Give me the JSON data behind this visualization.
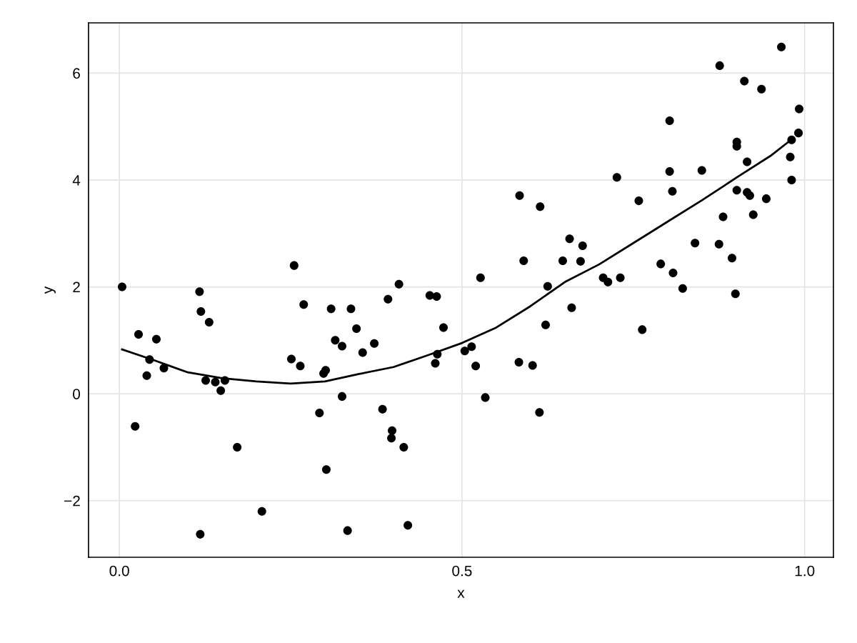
{
  "chart_data": {
    "type": "scatter",
    "xlabel": "x",
    "ylabel": "y",
    "xlim": [
      -0.045,
      1.042
    ],
    "ylim": [
      -3.06,
      6.94
    ],
    "xticks": [
      {
        "value": 0,
        "label": "0.0"
      },
      0.5,
      {
        "value": 1,
        "label": "1.0"
      }
    ],
    "yticks": [
      {
        "value": -2,
        "label": "−2"
      },
      0,
      2,
      4,
      6
    ],
    "grid": true,
    "legend": false,
    "series": [
      {
        "color": "#000000",
        "marker": "circle",
        "x": [
          0.004,
          0.028,
          0.023,
          0.054,
          0.044,
          0.04,
          0.065,
          0.117,
          0.119,
          0.131,
          0.118,
          0.126,
          0.14,
          0.154,
          0.148,
          0.172,
          0.208,
          0.255,
          0.269,
          0.251,
          0.264,
          0.301,
          0.298,
          0.292,
          0.302,
          0.309,
          0.315,
          0.338,
          0.325,
          0.346,
          0.355,
          0.372,
          0.392,
          0.408,
          0.325,
          0.384,
          0.398,
          0.397,
          0.415,
          0.333,
          0.421,
          0.453,
          0.463,
          0.473,
          0.464,
          0.461,
          0.504,
          0.514,
          0.52,
          0.527,
          0.534,
          0.584,
          0.614,
          0.59,
          0.583,
          0.603,
          0.613,
          0.625,
          0.622,
          0.66,
          0.647,
          0.657,
          0.673,
          0.676,
          0.726,
          0.706,
          0.713,
          0.731,
          0.758,
          0.763,
          0.803,
          0.803,
          0.807,
          0.79,
          0.808,
          0.822,
          0.84,
          0.85,
          0.876,
          0.875,
          0.881,
          0.894,
          0.899,
          0.901,
          0.901,
          0.901,
          0.916,
          0.916,
          0.92,
          0.912,
          0.937,
          0.925,
          0.944,
          0.966,
          0.981,
          0.979,
          0.981,
          0.991,
          0.992
        ],
        "values": [
          2.0,
          1.11,
          -0.61,
          1.02,
          0.64,
          0.34,
          0.48,
          1.91,
          1.54,
          1.34,
          -2.63,
          0.25,
          0.22,
          0.25,
          0.06,
          -1.0,
          -2.2,
          2.4,
          1.67,
          0.65,
          0.52,
          0.44,
          0.38,
          -0.36,
          -1.42,
          1.59,
          1.0,
          1.59,
          0.89,
          1.22,
          0.77,
          0.94,
          1.77,
          2.05,
          -0.05,
          -0.29,
          -0.69,
          -0.83,
          -1.0,
          -2.56,
          -2.46,
          1.84,
          1.82,
          1.24,
          0.74,
          0.57,
          0.8,
          0.88,
          0.52,
          2.17,
          -0.07,
          3.71,
          3.5,
          2.49,
          0.59,
          0.53,
          -0.35,
          2.01,
          1.29,
          1.61,
          2.49,
          2.9,
          2.48,
          2.77,
          4.05,
          2.17,
          2.09,
          2.17,
          3.61,
          1.2,
          5.11,
          4.16,
          3.79,
          2.43,
          2.26,
          1.97,
          2.82,
          4.18,
          6.14,
          2.8,
          3.31,
          2.54,
          1.87,
          4.71,
          4.63,
          3.81,
          4.34,
          3.77,
          3.71,
          5.85,
          5.7,
          3.35,
          3.65,
          6.49,
          4.75,
          4.43,
          4.0,
          4.88,
          5.33
        ]
      },
      {
        "type": "line",
        "color": "#000000",
        "marker": "none",
        "line_style": "solid",
        "x": [
          0.004,
          0.05,
          0.1,
          0.15,
          0.2,
          0.25,
          0.3,
          0.35,
          0.4,
          0.45,
          0.5,
          0.55,
          0.6,
          0.65,
          0.7,
          0.75,
          0.8,
          0.85,
          0.9,
          0.95,
          0.98
        ],
        "values": [
          0.83,
          0.63,
          0.4,
          0.29,
          0.23,
          0.19,
          0.23,
          0.37,
          0.5,
          0.72,
          0.95,
          1.24,
          1.64,
          2.09,
          2.42,
          2.82,
          3.22,
          3.62,
          4.04,
          4.45,
          4.75
        ]
      }
    ]
  }
}
